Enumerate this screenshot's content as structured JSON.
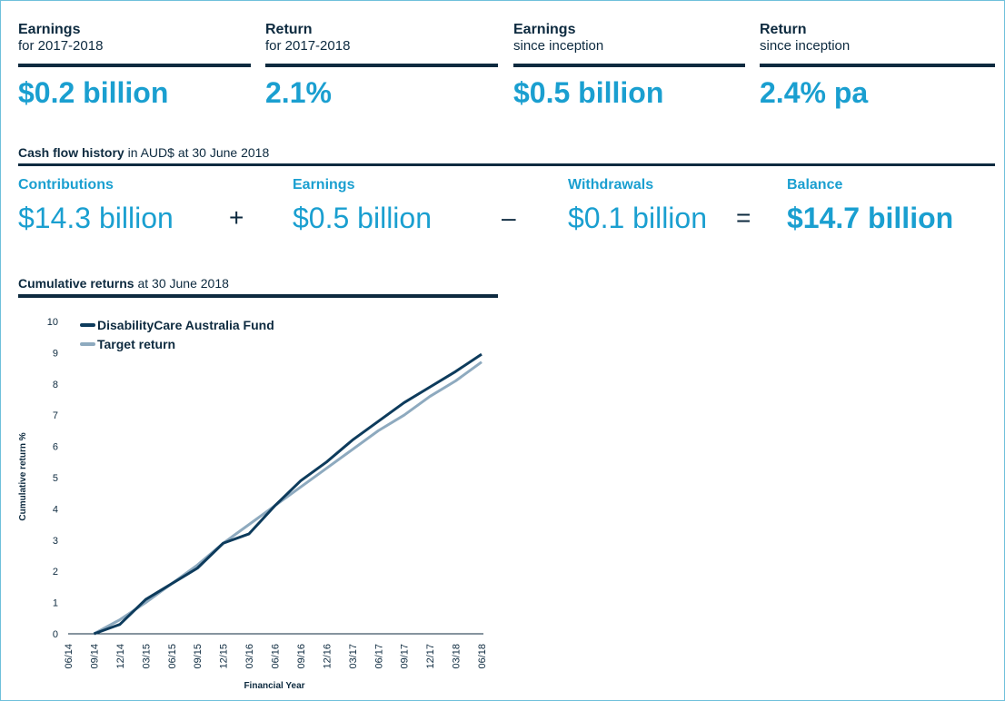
{
  "summary": [
    {
      "label": "Earnings",
      "sublabel": "for 2017-2018",
      "value": "$0.2 billion"
    },
    {
      "label": "Return",
      "sublabel": "for 2017-2018",
      "value": "2.1%"
    },
    {
      "label": "Earnings",
      "sublabel": "since inception",
      "value": "$0.5 billion"
    },
    {
      "label": "Return",
      "sublabel": "since inception",
      "value": "2.4% pa"
    }
  ],
  "cash_flow": {
    "title": "Cash flow history",
    "subtitle": "in AUD$ at 30 June 2018",
    "items": [
      {
        "label": "Contributions",
        "value": "$14.3 billion"
      },
      {
        "label": "Earnings",
        "value": "$0.5 billion"
      },
      {
        "label": "Withdrawals",
        "value": "$0.1 billion"
      },
      {
        "label": "Balance",
        "value": "$14.7 billion"
      }
    ],
    "operators": [
      "+",
      "–",
      "="
    ]
  },
  "chart_data": {
    "type": "line",
    "title": "Cumulative returns",
    "subtitle": "at 30 June 2018",
    "x_label": "Financial Year",
    "y_label": "Cumulative return %",
    "categories": [
      "06/14",
      "09/14",
      "12/14",
      "03/15",
      "06/15",
      "09/15",
      "12/15",
      "03/16",
      "06/16",
      "09/16",
      "12/16",
      "03/17",
      "06/17",
      "09/17",
      "12/17",
      "03/18",
      "06/18"
    ],
    "series": [
      {
        "name": "DisabilityCare Australia Fund",
        "color": "#0d3b5c",
        "values": [
          null,
          0,
          0.3,
          1.1,
          1.6,
          2.1,
          2.9,
          3.2,
          4.1,
          4.9,
          5.5,
          6.2,
          6.8,
          7.4,
          7.9,
          8.4,
          8.95
        ]
      },
      {
        "name": "Target return",
        "color": "#8eaabf",
        "values": [
          null,
          0,
          0.45,
          1.0,
          1.6,
          2.2,
          2.9,
          3.5,
          4.1,
          4.7,
          5.3,
          5.9,
          6.5,
          7.0,
          7.6,
          8.1,
          8.7
        ]
      }
    ],
    "ylim": [
      0,
      10
    ],
    "yticks": [
      0,
      1,
      2,
      3,
      4,
      5,
      6,
      7,
      8,
      9,
      10
    ],
    "grid": false,
    "legend": "top-left"
  }
}
